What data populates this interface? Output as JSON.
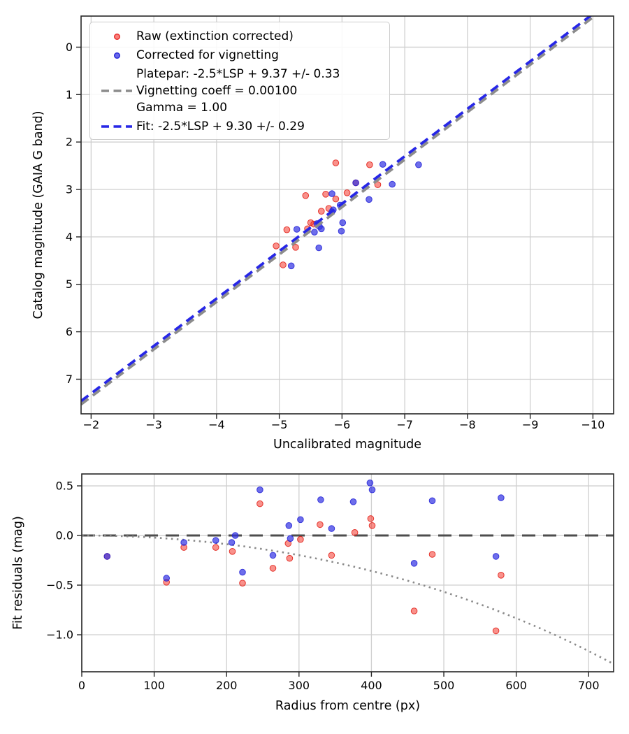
{
  "colors": {
    "raw_marker": "#f4362c",
    "vignetting_marker": "#3030e2",
    "platepar_line": "#8c8c8c",
    "fit_line": "#2727e6",
    "zero_line": "#4d4d4d",
    "vignetting_curve": "#8a8a8a",
    "grid": "#cfcfcf",
    "spine": "#262626",
    "text": "#000000"
  },
  "legend": {
    "items": [
      {
        "marker": "red-dot",
        "label": "Raw (extinction corrected)"
      },
      {
        "marker": "blue-dot",
        "label": "Corrected for vignetting"
      },
      {
        "marker": "gray-dash",
        "lines": [
          "Platepar: -2.5*LSP + 9.37 +/- 0.33",
          "Vignetting coeff = 0.00100",
          "Gamma = 1.00"
        ]
      },
      {
        "marker": "blue-dash",
        "label": "Fit: -2.5*LSP + 9.30 +/- 0.29"
      }
    ]
  },
  "chart_data": [
    {
      "type": "scatter",
      "title": "",
      "xlabel": "Uncalibrated magnitude",
      "ylabel": "Catalog magnitude (GAIA G band)",
      "xlim": [
        -1.84,
        -10.33
      ],
      "ylim": [
        7.73,
        -0.655
      ],
      "grid": true,
      "xticks": {
        "values": [
          -2,
          -3,
          -4,
          -5,
          -6,
          -7,
          -8,
          -9,
          -10
        ],
        "labels": [
          "−2",
          "−3",
          "−4",
          "−5",
          "−6",
          "−7",
          "−8",
          "−9",
          "−10"
        ]
      },
      "yticks": {
        "values": [
          0,
          1,
          2,
          3,
          4,
          5,
          6,
          7
        ],
        "labels": [
          "0",
          "1",
          "2",
          "3",
          "4",
          "5",
          "6",
          "7"
        ]
      },
      "series": [
        {
          "name": "Raw (extinction corrected)",
          "color_key": "raw",
          "points": [
            [
              -5.9,
              2.44
            ],
            [
              -6.44,
              2.48
            ],
            [
              -6.57,
              2.9
            ],
            [
              -6.22,
              2.86
            ],
            [
              -6.08,
              3.07
            ],
            [
              -5.74,
              3.1
            ],
            [
              -5.42,
              3.13
            ],
            [
              -5.9,
              3.2
            ],
            [
              -5.79,
              3.4
            ],
            [
              -5.67,
              3.46
            ],
            [
              -5.5,
              3.7
            ],
            [
              -5.55,
              3.73
            ],
            [
              -5.45,
              3.83
            ],
            [
              -5.12,
              3.85
            ],
            [
              -4.95,
              4.19
            ],
            [
              -5.26,
              4.22
            ],
            [
              -5.06,
              4.59
            ]
          ]
        },
        {
          "name": "Corrected for vignetting",
          "color_key": "vignetting",
          "points": [
            [
              -6.65,
              2.47
            ],
            [
              -7.22,
              2.48
            ],
            [
              -6.8,
              2.89
            ],
            [
              -6.22,
              2.86
            ],
            [
              -6.43,
              3.21
            ],
            [
              -5.84,
              3.09
            ],
            [
              -5.97,
              3.33
            ],
            [
              -5.86,
              3.43
            ],
            [
              -5.84,
              3.47
            ],
            [
              -6.01,
              3.7
            ],
            [
              -5.6,
              3.72
            ],
            [
              -5.64,
              3.78
            ],
            [
              -5.67,
              3.83
            ],
            [
              -5.99,
              3.88
            ],
            [
              -5.56,
              3.9
            ],
            [
              -5.28,
              3.84
            ],
            [
              -5.63,
              4.23
            ],
            [
              -5.19,
              4.61
            ]
          ]
        }
      ],
      "fit_lines": [
        {
          "name": "platepar",
          "slope": 1.0,
          "intercept": 9.37,
          "color_key": "platepar",
          "style": "dashed"
        },
        {
          "name": "fit",
          "slope": 1.0,
          "intercept": 9.3,
          "color_key": "fit",
          "style": "dashed"
        }
      ]
    },
    {
      "type": "scatter",
      "title": "",
      "xlabel": "Radius from centre (px)",
      "ylabel": "Fit residuals (mag)",
      "xlim": [
        0,
        734.5
      ],
      "ylim": [
        -1.373,
        0.62
      ],
      "grid": true,
      "xticks": {
        "values": [
          0,
          100,
          200,
          300,
          400,
          500,
          600,
          700
        ],
        "labels": [
          "0",
          "100",
          "200",
          "300",
          "400",
          "500",
          "600",
          "700"
        ]
      },
      "yticks": {
        "values": [
          0.5,
          0.0,
          -0.5,
          -1.0
        ],
        "labels": [
          "0.5",
          "0.0",
          "−0.5",
          "−1.0"
        ]
      },
      "series": [
        {
          "name": "Raw (extinction corrected)",
          "color_key": "raw",
          "points": [
            [
              35,
              -0.21
            ],
            [
              117,
              -0.47
            ],
            [
              141,
              -0.12
            ],
            [
              185,
              -0.12
            ],
            [
              208,
              -0.16
            ],
            [
              222,
              -0.48
            ],
            [
              246,
              0.32
            ],
            [
              264,
              -0.33
            ],
            [
              285,
              -0.08
            ],
            [
              287,
              -0.23
            ],
            [
              302,
              -0.04
            ],
            [
              329,
              0.11
            ],
            [
              345,
              -0.2
            ],
            [
              377,
              0.03
            ],
            [
              399,
              0.17
            ],
            [
              401,
              0.1
            ],
            [
              459,
              -0.76
            ],
            [
              484,
              -0.19
            ],
            [
              572,
              -0.96
            ],
            [
              579,
              -0.4
            ]
          ]
        },
        {
          "name": "Corrected for vignetting",
          "color_key": "vignetting",
          "points": [
            [
              35,
              -0.21
            ],
            [
              117,
              -0.43
            ],
            [
              141,
              -0.07
            ],
            [
              185,
              -0.05
            ],
            [
              207,
              -0.07
            ],
            [
              212,
              0.0
            ],
            [
              222,
              -0.37
            ],
            [
              246,
              0.46
            ],
            [
              264,
              -0.2
            ],
            [
              286,
              0.1
            ],
            [
              288,
              -0.03
            ],
            [
              302,
              0.16
            ],
            [
              330,
              0.36
            ],
            [
              345,
              0.07
            ],
            [
              375,
              0.34
            ],
            [
              398,
              0.53
            ],
            [
              401,
              0.46
            ],
            [
              459,
              -0.28
            ],
            [
              484,
              0.35
            ],
            [
              572,
              -0.21
            ],
            [
              579,
              0.38
            ]
          ]
        }
      ],
      "zero_line": {
        "value": 0.0,
        "color_key": "zero_line",
        "style": "dashed"
      },
      "vignetting_curve": {
        "formula": "10*log10(cos(coeff*r))",
        "coeff": 0.001,
        "color_key": "vignetting_curve",
        "style": "dotted"
      }
    }
  ]
}
